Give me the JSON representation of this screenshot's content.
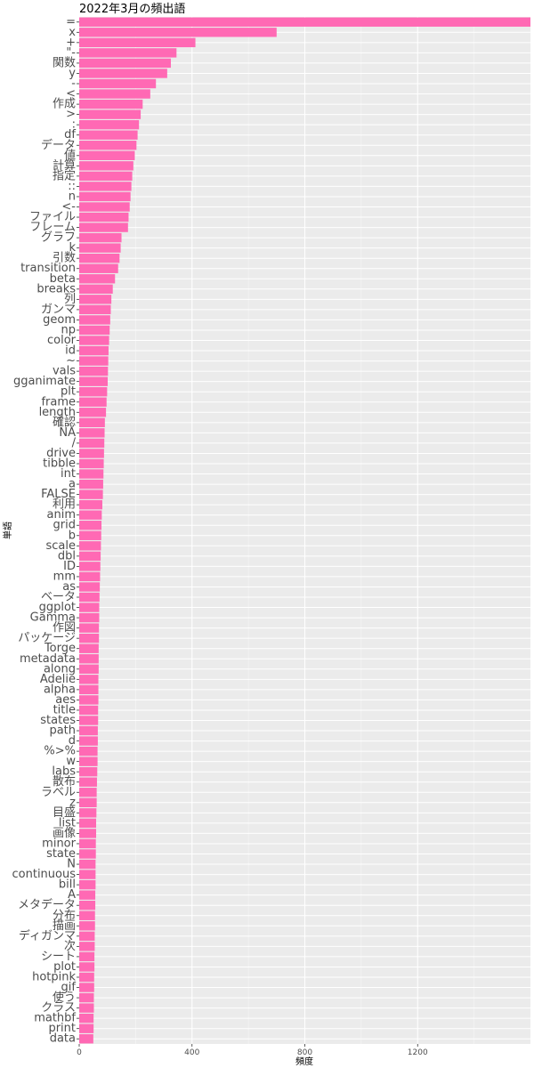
{
  "chart_data": {
    "type": "bar",
    "orientation": "horizontal",
    "title": "2022年3月の頻出語",
    "xlabel": "頻度",
    "ylabel": "単語",
    "xlim": [
      0,
      1600
    ],
    "x_ticks": [
      0,
      400,
      800,
      1200
    ],
    "grid": true,
    "bar_color": "#FF69B4",
    "panel_color": "#EBEBEB",
    "categories": [
      "=",
      "x",
      "+",
      "\"-",
      "関数",
      "y",
      "-",
      "<",
      "作成",
      ">",
      ":",
      "df",
      "データ",
      "値",
      "計算",
      "指定",
      "::",
      "n",
      "<-",
      "ファイル",
      "フレーム",
      "グラフ",
      "k",
      "引数",
      "transition",
      "beta",
      "breaks",
      "列",
      "ガンマ",
      "geom",
      "np",
      "color",
      "id",
      "~",
      "vals",
      "gganimate",
      "plt",
      "frame",
      "length",
      "確認",
      "NA",
      "/",
      "drive",
      "tibble",
      "int",
      "a",
      "FALSE",
      "利用",
      "anim",
      "grid",
      "b",
      "scale",
      "dbl",
      "ID",
      "mm",
      "as",
      "ベータ",
      "ggplot",
      "Gamma",
      "作図",
      "パッケージ",
      "Torge",
      "metadata",
      "along",
      "Adelie",
      "alpha",
      "aes",
      "title",
      "states",
      "path",
      "d",
      "%>%",
      "w",
      "labs",
      "散布",
      "ラベル",
      "z",
      "目盛",
      "list",
      "画像",
      "minor",
      "state",
      "N",
      "continuous",
      "bill",
      "A",
      "メタデータ",
      "分布",
      "描画",
      "ディガンマ",
      "次",
      "シート",
      "plot",
      "hotpink",
      "gif",
      "使う",
      "クラス",
      "mathbf",
      "print",
      "data"
    ],
    "values": [
      1600,
      700,
      412,
      345,
      325,
      312,
      272,
      252,
      225,
      218,
      212,
      207,
      203,
      197,
      192,
      188,
      185,
      182,
      179,
      175,
      173,
      150,
      147,
      143,
      138,
      127,
      119,
      114,
      112,
      110,
      108,
      106,
      104,
      103,
      102,
      101,
      99,
      97,
      95,
      91,
      90,
      89,
      88,
      87,
      86,
      85,
      84,
      82,
      80,
      79,
      78,
      77,
      76,
      75,
      74,
      73,
      72,
      71,
      71,
      70,
      70,
      69,
      69,
      69,
      68,
      68,
      68,
      67,
      67,
      66,
      66,
      65,
      65,
      64,
      63,
      62,
      62,
      61,
      60,
      60,
      59,
      59,
      58,
      58,
      58,
      57,
      57,
      56,
      56,
      55,
      55,
      54,
      54,
      53,
      53,
      52,
      52,
      51,
      51,
      50
    ]
  }
}
